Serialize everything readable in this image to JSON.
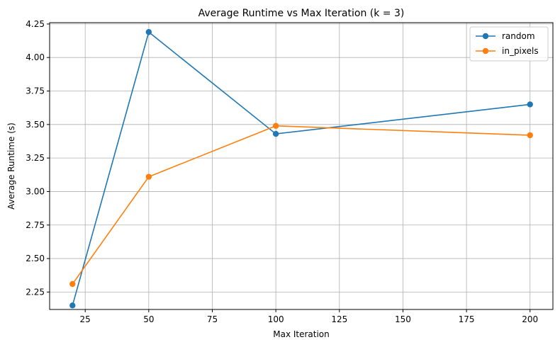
{
  "chart_data": {
    "type": "line",
    "title": "Average Runtime vs Max Iteration (k = 3)",
    "xlabel": "Max Iteration",
    "ylabel": "Average Runtime (s)",
    "xlim": [
      11,
      209
    ],
    "ylim": [
      2.12,
      4.26
    ],
    "xticks": [
      25,
      50,
      75,
      100,
      125,
      150,
      175,
      200
    ],
    "xtick_labels": [
      "25",
      "50",
      "75",
      "100",
      "125",
      "150",
      "175",
      "200"
    ],
    "yticks": [
      2.25,
      2.5,
      2.75,
      3.0,
      3.25,
      3.5,
      3.75,
      4.0,
      4.25
    ],
    "ytick_labels": [
      "2.25",
      "2.50",
      "2.75",
      "3.00",
      "3.25",
      "3.50",
      "3.75",
      "4.00",
      "4.25"
    ],
    "grid": true,
    "legend_position": "top-right",
    "x": [
      20,
      50,
      100,
      200
    ],
    "series": [
      {
        "name": "random",
        "color": "#1f77b4",
        "values": [
          2.15,
          4.19,
          3.43,
          3.65
        ]
      },
      {
        "name": "in_pixels",
        "color": "#ff7f0e",
        "values": [
          2.31,
          3.11,
          3.49,
          3.42
        ]
      }
    ]
  }
}
